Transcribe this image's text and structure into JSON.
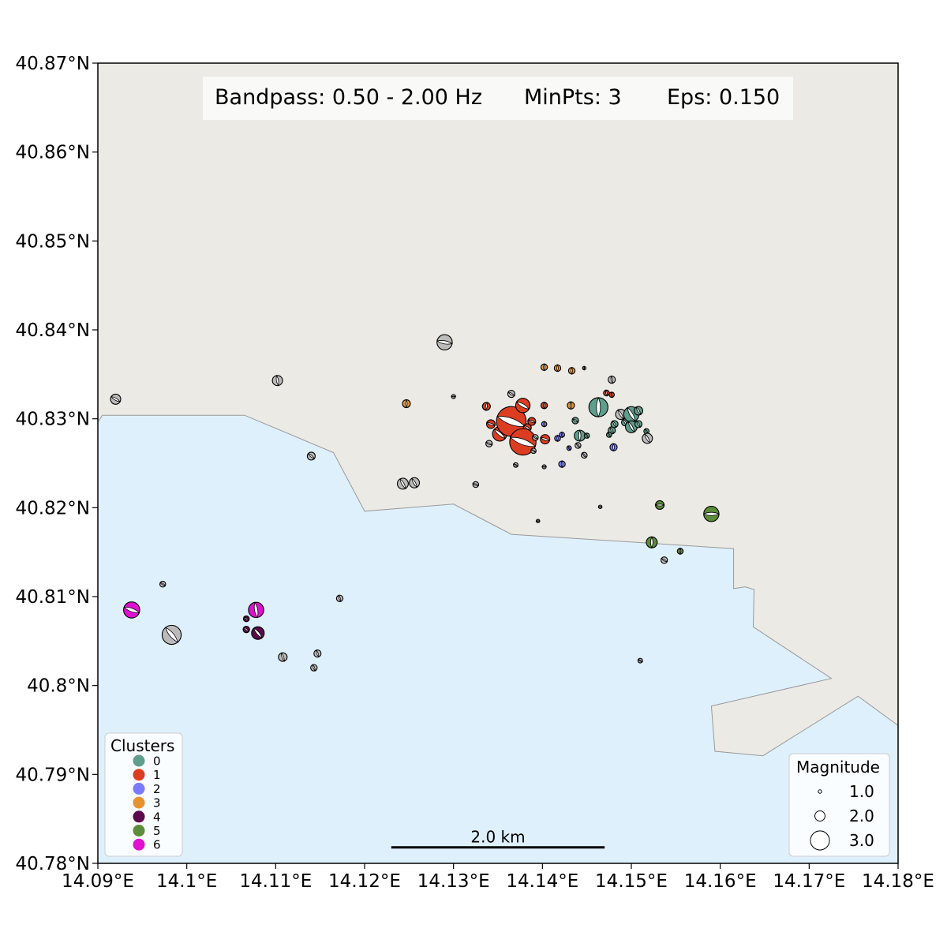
{
  "info_box": {
    "bandpass": "Bandpass: 0.50 - 2.00 Hz",
    "minpts": "MinPts: 3",
    "eps": "Eps: 0.150"
  },
  "axes": {
    "lon_range": [
      14.09,
      14.18
    ],
    "lat_range": [
      40.78,
      40.87
    ],
    "x_ticks": [
      {
        "value": 14.09,
        "label": "14.09°E"
      },
      {
        "value": 14.1,
        "label": "14.1°E"
      },
      {
        "value": 14.11,
        "label": "14.11°E"
      },
      {
        "value": 14.12,
        "label": "14.12°E"
      },
      {
        "value": 14.13,
        "label": "14.13°E"
      },
      {
        "value": 14.14,
        "label": "14.14°E"
      },
      {
        "value": 14.15,
        "label": "14.15°E"
      },
      {
        "value": 14.16,
        "label": "14.16°E"
      },
      {
        "value": 14.17,
        "label": "14.17°E"
      },
      {
        "value": 14.18,
        "label": "14.18°E"
      }
    ],
    "y_ticks": [
      {
        "value": 40.87,
        "label": "40.87°N"
      },
      {
        "value": 40.86,
        "label": "40.86°N"
      },
      {
        "value": 40.85,
        "label": "40.85°N"
      },
      {
        "value": 40.84,
        "label": "40.84°N"
      },
      {
        "value": 40.83,
        "label": "40.83°N"
      },
      {
        "value": 40.82,
        "label": "40.82°N"
      },
      {
        "value": 40.81,
        "label": "40.81°N"
      },
      {
        "value": 40.8,
        "label": "40.8°N"
      },
      {
        "value": 40.79,
        "label": "40.79°N"
      },
      {
        "value": 40.78,
        "label": "40.78°N"
      }
    ]
  },
  "colors": {
    "land": "#ebeae5",
    "sea": "#dff0fd",
    "coast": "#999999",
    "noise": "#bbbbbb"
  },
  "sea_polygon": [
    [
      14.09,
      40.78
    ],
    [
      14.09,
      40.8296
    ],
    [
      14.0905,
      40.8304
    ],
    [
      14.1065,
      40.8304
    ],
    [
      14.1165,
      40.8262
    ],
    [
      14.12,
      40.8196
    ],
    [
      14.13,
      40.8204
    ],
    [
      14.1365,
      40.817
    ],
    [
      14.1615,
      40.8154
    ],
    [
      14.1615,
      40.8109
    ],
    [
      14.1628,
      40.8111
    ],
    [
      14.1638,
      40.8108
    ],
    [
      14.1637,
      40.8066
    ],
    [
      14.1725,
      40.8008
    ],
    [
      14.159,
      40.7977
    ],
    [
      14.1594,
      40.7926
    ],
    [
      14.1648,
      40.7921
    ],
    [
      14.1755,
      40.7988
    ],
    [
      14.18,
      40.7955
    ],
    [
      14.18,
      40.78
    ]
  ],
  "scale_bar": {
    "label": "2.0 km",
    "lon_start": 14.123,
    "lon_end": 14.147,
    "lat": 40.7818
  },
  "legend_clusters": {
    "title": "Clusters",
    "items": [
      {
        "label": "0",
        "color": "#5e9e8c"
      },
      {
        "label": "1",
        "color": "#dc3d21"
      },
      {
        "label": "2",
        "color": "#7a7aff"
      },
      {
        "label": "3",
        "color": "#e8922f"
      },
      {
        "label": "4",
        "color": "#5c0a4e"
      },
      {
        "label": "5",
        "color": "#5c8c3a"
      },
      {
        "label": "6",
        "color": "#e010d0"
      }
    ]
  },
  "legend_magnitude": {
    "title": "Magnitude",
    "items": [
      {
        "label": "1.0",
        "mag": 1.0
      },
      {
        "label": "2.0",
        "mag": 2.0
      },
      {
        "label": "3.0",
        "mag": 3.0
      }
    ]
  },
  "events": [
    {
      "lon": 14.092,
      "lat": 40.8322,
      "mag": 2.0,
      "cluster": -1,
      "strike": 30
    },
    {
      "lon": 14.1102,
      "lat": 40.8343,
      "mag": 2.0,
      "cluster": -1,
      "strike": 80
    },
    {
      "lon": 14.129,
      "lat": 40.8386,
      "mag": 2.6,
      "cluster": -1,
      "strike": 10
    },
    {
      "lon": 14.1247,
      "lat": 40.8317,
      "mag": 1.7,
      "cluster": 3,
      "strike": 90
    },
    {
      "lon": 14.13,
      "lat": 40.8325,
      "mag": 1.1,
      "cluster": -1,
      "strike": 0
    },
    {
      "lon": 14.114,
      "lat": 40.8258,
      "mag": 1.7,
      "cluster": -1,
      "strike": 40
    },
    {
      "lon": 14.1243,
      "lat": 40.8227,
      "mag": 2.1,
      "cluster": -1,
      "strike": 60
    },
    {
      "lon": 14.1256,
      "lat": 40.8228,
      "mag": 2.0,
      "cluster": -1,
      "strike": 60
    },
    {
      "lon": 14.1325,
      "lat": 40.8226,
      "mag": 1.4,
      "cluster": -1,
      "strike": 20
    },
    {
      "lon": 14.1337,
      "lat": 40.8314,
      "mag": 1.7,
      "cluster": 1,
      "strike": 100
    },
    {
      "lon": 14.1342,
      "lat": 40.8294,
      "mag": 1.8,
      "cluster": 1,
      "strike": 20
    },
    {
      "lon": 14.134,
      "lat": 40.8272,
      "mag": 1.5,
      "cluster": -1,
      "strike": 20
    },
    {
      "lon": 14.1352,
      "lat": 40.8283,
      "mag": 2.5,
      "cluster": 1,
      "strike": 40
    },
    {
      "lon": 14.1365,
      "lat": 40.8297,
      "mag": 4.0,
      "cluster": 1,
      "strike": 20
    },
    {
      "lon": 14.1378,
      "lat": 40.8315,
      "mag": 2.5,
      "cluster": 1,
      "strike": 30
    },
    {
      "lon": 14.1383,
      "lat": 40.829,
      "mag": 1.7,
      "cluster": 1,
      "strike": 30
    },
    {
      "lon": 14.1378,
      "lat": 40.8274,
      "mag": 3.7,
      "cluster": 1,
      "strike": 20
    },
    {
      "lon": 14.1365,
      "lat": 40.8328,
      "mag": 1.6,
      "cluster": -1,
      "strike": 30
    },
    {
      "lon": 14.137,
      "lat": 40.8248,
      "mag": 1.2,
      "cluster": -1,
      "strike": 30
    },
    {
      "lon": 14.1388,
      "lat": 40.8297,
      "mag": 1.7,
      "cluster": 1,
      "strike": 20
    },
    {
      "lon": 14.1392,
      "lat": 40.8279,
      "mag": 1.4,
      "cluster": -1,
      "strike": 30
    },
    {
      "lon": 14.139,
      "lat": 40.8264,
      "mag": 1.3,
      "cluster": -1,
      "strike": 30
    },
    {
      "lon": 14.1402,
      "lat": 40.8315,
      "mag": 1.5,
      "cluster": 1,
      "strike": 90
    },
    {
      "lon": 14.1402,
      "lat": 40.8294,
      "mag": 1.3,
      "cluster": 2,
      "strike": 90
    },
    {
      "lon": 14.1403,
      "lat": 40.8277,
      "mag": 1.9,
      "cluster": 1,
      "strike": 20
    },
    {
      "lon": 14.1402,
      "lat": 40.8358,
      "mag": 1.5,
      "cluster": 3,
      "strike": 90
    },
    {
      "lon": 14.1402,
      "lat": 40.8246,
      "mag": 1.1,
      "cluster": -1,
      "strike": 0
    },
    {
      "lon": 14.1417,
      "lat": 40.8357,
      "mag": 1.5,
      "cluster": 3,
      "strike": 90
    },
    {
      "lon": 14.1417,
      "lat": 40.8278,
      "mag": 1.4,
      "cluster": 2,
      "strike": 90
    },
    {
      "lon": 14.1422,
      "lat": 40.8282,
      "mag": 1.3,
      "cluster": 2,
      "strike": 80
    },
    {
      "lon": 14.1422,
      "lat": 40.8249,
      "mag": 1.5,
      "cluster": 2,
      "strike": 90
    },
    {
      "lon": 14.1432,
      "lat": 40.8315,
      "mag": 1.6,
      "cluster": 3,
      "strike": 90
    },
    {
      "lon": 14.1433,
      "lat": 40.8354,
      "mag": 1.5,
      "cluster": 3,
      "strike": 90
    },
    {
      "lon": 14.143,
      "lat": 40.8267,
      "mag": 1.2,
      "cluster": 2,
      "strike": 60
    },
    {
      "lon": 14.1437,
      "lat": 40.8298,
      "mag": 1.5,
      "cluster": 0,
      "strike": 30
    },
    {
      "lon": 14.1442,
      "lat": 40.8281,
      "mag": 2.1,
      "cluster": 0,
      "strike": 90
    },
    {
      "lon": 14.144,
      "lat": 40.827,
      "mag": 1.4,
      "cluster": -1,
      "strike": 50
    },
    {
      "lon": 14.1447,
      "lat": 40.8259,
      "mag": 1.4,
      "cluster": -1,
      "strike": 50
    },
    {
      "lon": 14.1447,
      "lat": 40.8357,
      "mag": 1.0,
      "cluster": 3,
      "strike": 90
    },
    {
      "lon": 14.145,
      "lat": 40.8281,
      "mag": 1.3,
      "cluster": 0,
      "strike": 60
    },
    {
      "lon": 14.1463,
      "lat": 40.8313,
      "mag": 3.0,
      "cluster": 0,
      "strike": 90
    },
    {
      "lon": 14.1472,
      "lat": 40.8329,
      "mag": 1.4,
      "cluster": 1,
      "strike": 80
    },
    {
      "lon": 14.1478,
      "lat": 40.8327,
      "mag": 1.3,
      "cluster": 1,
      "strike": 80
    },
    {
      "lon": 14.1478,
      "lat": 40.8344,
      "mag": 1.6,
      "cluster": -1,
      "strike": 80
    },
    {
      "lon": 14.1478,
      "lat": 40.8287,
      "mag": 1.6,
      "cluster": 0,
      "strike": 60
    },
    {
      "lon": 14.1475,
      "lat": 40.8282,
      "mag": 1.3,
      "cluster": 0,
      "strike": 60
    },
    {
      "lon": 14.1481,
      "lat": 40.8294,
      "mag": 1.6,
      "cluster": 0,
      "strike": 60
    },
    {
      "lon": 14.148,
      "lat": 40.8268,
      "mag": 1.6,
      "cluster": 2,
      "strike": 90
    },
    {
      "lon": 14.1488,
      "lat": 40.8305,
      "mag": 2.0,
      "cluster": -1,
      "strike": 60
    },
    {
      "lon": 14.1493,
      "lat": 40.8296,
      "mag": 1.6,
      "cluster": 0,
      "strike": 60
    },
    {
      "lon": 14.15,
      "lat": 40.8305,
      "mag": 2.6,
      "cluster": 0,
      "strike": 60
    },
    {
      "lon": 14.15,
      "lat": 40.8291,
      "mag": 2.2,
      "cluster": 0,
      "strike": 60
    },
    {
      "lon": 14.1508,
      "lat": 40.8309,
      "mag": 1.8,
      "cluster": 0,
      "strike": 60
    },
    {
      "lon": 14.1508,
      "lat": 40.8294,
      "mag": 1.6,
      "cluster": 0,
      "strike": 60
    },
    {
      "lon": 14.1517,
      "lat": 40.8286,
      "mag": 1.3,
      "cluster": 0,
      "strike": 60
    },
    {
      "lon": 14.1518,
      "lat": 40.8278,
      "mag": 2.0,
      "cluster": -1,
      "strike": 60
    },
    {
      "lon": 14.1465,
      "lat": 40.8201,
      "mag": 1.0,
      "cluster": -1,
      "strike": 0
    },
    {
      "lon": 14.1395,
      "lat": 40.8185,
      "mag": 1.0,
      "cluster": -1,
      "strike": 0
    },
    {
      "lon": 14.1532,
      "lat": 40.8203,
      "mag": 1.8,
      "cluster": 5,
      "strike": 0
    },
    {
      "lon": 14.159,
      "lat": 40.8193,
      "mag": 2.6,
      "cluster": 5,
      "strike": 0
    },
    {
      "lon": 14.1523,
      "lat": 40.8161,
      "mag": 2.1,
      "cluster": 5,
      "strike": 90
    },
    {
      "lon": 14.1555,
      "lat": 40.8151,
      "mag": 1.4,
      "cluster": 5,
      "strike": 90
    },
    {
      "lon": 14.1537,
      "lat": 40.8141,
      "mag": 1.5,
      "cluster": -1,
      "strike": 30
    },
    {
      "lon": 14.151,
      "lat": 40.8028,
      "mag": 1.2,
      "cluster": -1,
      "strike": 30
    },
    {
      "lon": 14.0973,
      "lat": 40.8114,
      "mag": 1.4,
      "cluster": -1,
      "strike": 30
    },
    {
      "lon": 14.0938,
      "lat": 40.8085,
      "mag": 2.7,
      "cluster": 6,
      "strike": 20
    },
    {
      "lon": 14.0983,
      "lat": 40.8057,
      "mag": 3.0,
      "cluster": -1,
      "strike": 50
    },
    {
      "lon": 14.1078,
      "lat": 40.8085,
      "mag": 2.6,
      "cluster": 6,
      "strike": 80
    },
    {
      "lon": 14.1067,
      "lat": 40.8075,
      "mag": 1.4,
      "cluster": 4,
      "strike": 40
    },
    {
      "lon": 14.1067,
      "lat": 40.8063,
      "mag": 1.5,
      "cluster": 4,
      "strike": 40
    },
    {
      "lon": 14.108,
      "lat": 40.8059,
      "mag": 2.3,
      "cluster": 4,
      "strike": 50
    },
    {
      "lon": 14.1172,
      "lat": 40.8098,
      "mag": 1.5,
      "cluster": -1,
      "strike": 70
    },
    {
      "lon": 14.1108,
      "lat": 40.8032,
      "mag": 1.8,
      "cluster": -1,
      "strike": 70
    },
    {
      "lon": 14.1147,
      "lat": 40.8036,
      "mag": 1.6,
      "cluster": -1,
      "strike": 70
    },
    {
      "lon": 14.1143,
      "lat": 40.802,
      "mag": 1.5,
      "cluster": -1,
      "strike": 70
    }
  ]
}
